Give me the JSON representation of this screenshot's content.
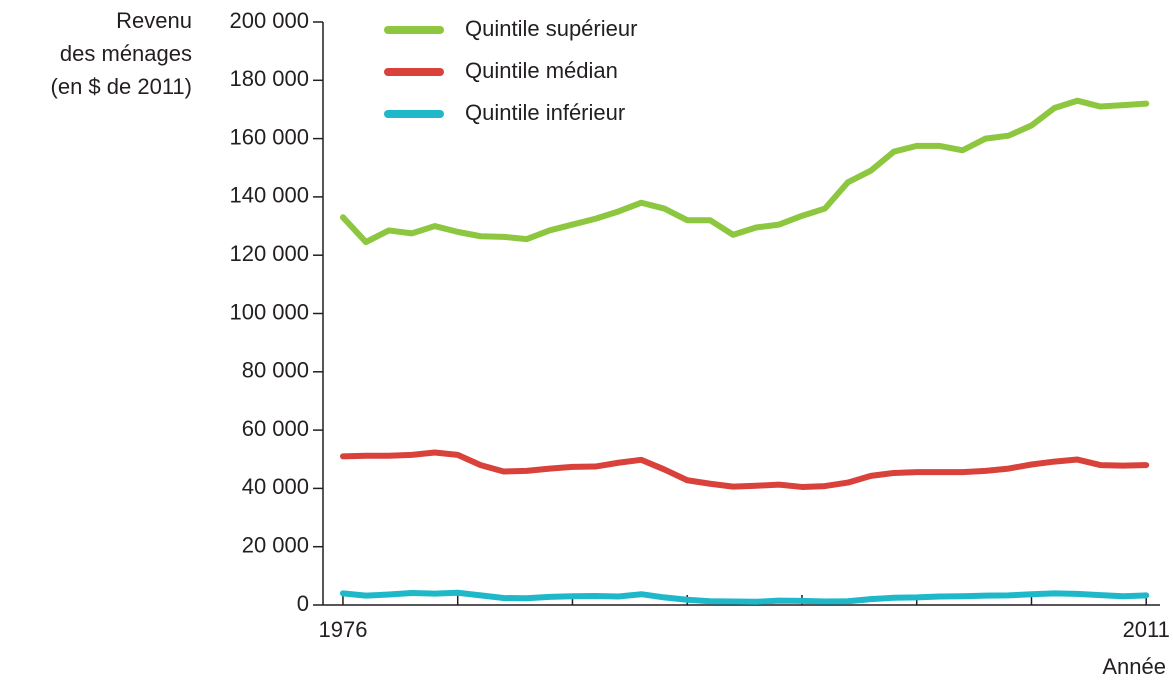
{
  "chart_data": {
    "type": "line",
    "ylabel": [
      "Revenu",
      "des ménages",
      "(en $ de 2011)"
    ],
    "xlabel": "Année",
    "x": [
      1976,
      1977,
      1978,
      1979,
      1980,
      1981,
      1982,
      1983,
      1984,
      1985,
      1986,
      1987,
      1988,
      1989,
      1990,
      1991,
      1992,
      1993,
      1994,
      1995,
      1996,
      1997,
      1998,
      1999,
      2000,
      2001,
      2002,
      2003,
      2004,
      2005,
      2006,
      2007,
      2008,
      2009,
      2010,
      2011
    ],
    "series": [
      {
        "name": "Quintile supérieur",
        "color": "#8dc63f",
        "values": [
          133000,
          124500,
          128500,
          127500,
          130000,
          128000,
          126500,
          126300,
          125500,
          128500,
          130500,
          132500,
          135000,
          138000,
          136000,
          132000,
          132000,
          127000,
          129500,
          130500,
          133500,
          136000,
          145000,
          149000,
          155500,
          157500,
          157500,
          156000,
          160000,
          161000,
          164500,
          170500,
          173000,
          171000,
          171500,
          172000
        ]
      },
      {
        "name": "Quintile médian",
        "color": "#d9413b",
        "values": [
          51000,
          51200,
          51200,
          51500,
          52300,
          51500,
          48000,
          45800,
          46000,
          46800,
          47400,
          47500,
          48800,
          49800,
          46500,
          42800,
          41600,
          40600,
          40900,
          41300,
          40500,
          40800,
          42000,
          44300,
          45300,
          45600,
          45600,
          45600,
          46000,
          46800,
          48200,
          49200,
          49900,
          48000,
          47800,
          48000
        ]
      },
      {
        "name": "Quintile inférieur",
        "color": "#1fb8c9",
        "values": [
          4000,
          3200,
          3600,
          4100,
          3900,
          4200,
          3300,
          2400,
          2300,
          2800,
          3000,
          3100,
          2900,
          3700,
          2600,
          1800,
          1300,
          1200,
          1100,
          1500,
          1400,
          1200,
          1300,
          2000,
          2500,
          2600,
          2900,
          3000,
          3200,
          3300,
          3700,
          4000,
          3800,
          3400,
          3000,
          3300
        ]
      }
    ],
    "xlim": [
      1975.13,
      2011.6
    ],
    "xticks": [
      1976,
      2011
    ],
    "minor_xticks": [
      1981,
      1986,
      1991,
      1996,
      2001,
      2006
    ],
    "ylim": [
      0,
      200000
    ],
    "yticks": [
      0,
      {
        "value": 20000,
        "label": "20 000"
      },
      {
        "value": 40000,
        "label": "40 000"
      },
      {
        "value": 60000,
        "label": "60 000"
      },
      {
        "value": 80000,
        "label": "80 000"
      },
      {
        "value": 100000,
        "label": "100 000"
      },
      {
        "value": 120000,
        "label": "120 000"
      },
      {
        "value": 140000,
        "label": "140 000"
      },
      {
        "value": 160000,
        "label": "160 000"
      },
      {
        "value": 180000,
        "label": "180 000"
      },
      {
        "value": 200000,
        "label": "200 000"
      }
    ],
    "legend": "top-left",
    "grid": false
  }
}
